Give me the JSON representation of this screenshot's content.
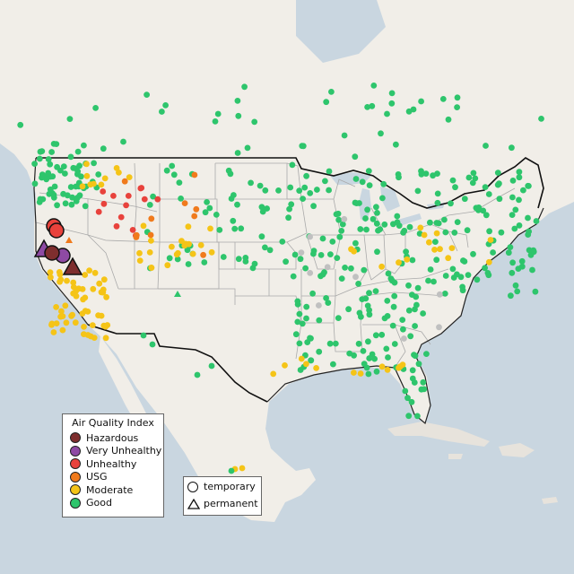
{
  "legend": {
    "title": "Air Quality Index",
    "categories": [
      {
        "label": "Hazardous",
        "color": "#7e2e2e"
      },
      {
        "label": "Very Unhealthy",
        "color": "#8e4aa4"
      },
      {
        "label": "Unhealthy",
        "color": "#e8423c"
      },
      {
        "label": "USG",
        "color": "#f07a1c"
      },
      {
        "label": "Moderate",
        "color": "#f5c417"
      },
      {
        "label": "Good",
        "color": "#2ec56c"
      }
    ]
  },
  "monitor_types": [
    "temporary",
    "permanent"
  ],
  "colors": {
    "water": "#c9d6e0",
    "land": "#f1eee8",
    "land_other": "#e7e3dc",
    "state_border": "#aaaaaa",
    "country_border": "#111111",
    "inactive_station": "#c0c0c0"
  }
}
